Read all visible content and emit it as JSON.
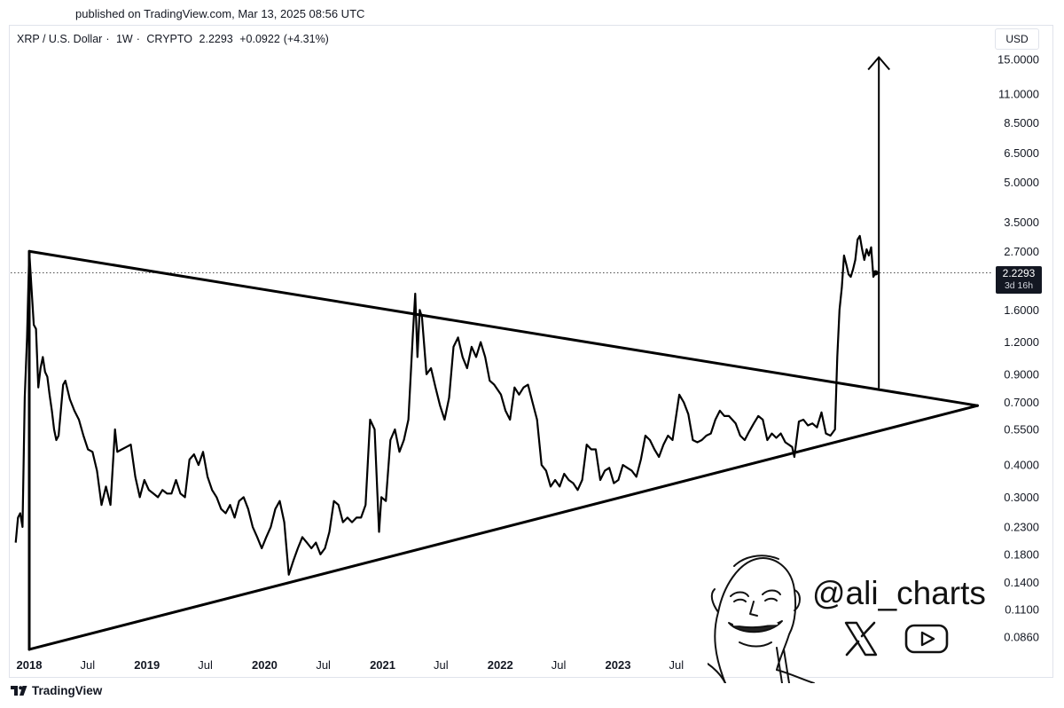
{
  "header": {
    "published": "published on TradingView.com, Mar 13, 2025 08:56 UTC"
  },
  "symbol": {
    "name": "XRP / U.S. Dollar",
    "interval": "1W",
    "source": "CRYPTO",
    "price": "2.2293",
    "change": "+0.0922",
    "change_pct": "(+4.31%)"
  },
  "currency": "USD",
  "price_tag": {
    "price": "2.2293",
    "countdown": "3d 16h"
  },
  "watermark": {
    "handle": "@ali_charts",
    "icons": [
      "x-logo-icon",
      "youtube-icon"
    ]
  },
  "footer": {
    "brand": "TradingView",
    "icon": "tradingview-logo-icon"
  },
  "colors": {
    "line": "#000000",
    "tag_bg": "#131722",
    "text": "#131722"
  },
  "chart_data": {
    "type": "line",
    "scale": "log",
    "ylim": [
      0.075,
      18
    ],
    "yticks": [
      "15.0000",
      "11.0000",
      "8.5000",
      "6.5000",
      "5.0000",
      "3.5000",
      "2.7000",
      "1.6000",
      "1.2000",
      "0.9000",
      "0.7000",
      "0.5500",
      "0.4000",
      "0.3000",
      "0.2300",
      "0.1800",
      "0.1400",
      "0.1100",
      "0.0860"
    ],
    "xticks": [
      "2018",
      "Jul",
      "2019",
      "Jul",
      "2020",
      "Jul",
      "2021",
      "Jul",
      "2022",
      "Jul",
      "2023",
      "Jul"
    ],
    "xlim": [
      "2017-11-20",
      "2026-01-20"
    ],
    "current_price": 2.2293,
    "series": [
      {
        "points": [
          [
            "2017-11-20",
            0.2
          ],
          [
            "2017-11-27",
            0.25
          ],
          [
            "2017-12-04",
            0.26
          ],
          [
            "2017-12-11",
            0.23
          ],
          [
            "2017-12-18",
            0.73
          ],
          [
            "2017-12-25",
            1.25
          ],
          [
            "2018-01-01",
            2.7
          ],
          [
            "2018-01-08",
            1.95
          ],
          [
            "2018-01-15",
            1.4
          ],
          [
            "2018-01-22",
            1.35
          ],
          [
            "2018-01-29",
            0.8
          ],
          [
            "2018-02-05",
            0.95
          ],
          [
            "2018-02-12",
            1.05
          ],
          [
            "2018-02-19",
            0.92
          ],
          [
            "2018-02-26",
            0.88
          ],
          [
            "2018-03-05",
            0.75
          ],
          [
            "2018-03-12",
            0.65
          ],
          [
            "2018-03-19",
            0.55
          ],
          [
            "2018-03-26",
            0.5
          ],
          [
            "2018-04-02",
            0.52
          ],
          [
            "2018-04-09",
            0.65
          ],
          [
            "2018-04-16",
            0.82
          ],
          [
            "2018-04-23",
            0.85
          ],
          [
            "2018-05-07",
            0.72
          ],
          [
            "2018-05-21",
            0.65
          ],
          [
            "2018-06-04",
            0.6
          ],
          [
            "2018-06-18",
            0.52
          ],
          [
            "2018-07-02",
            0.46
          ],
          [
            "2018-07-16",
            0.45
          ],
          [
            "2018-07-30",
            0.38
          ],
          [
            "2018-08-13",
            0.28
          ],
          [
            "2018-08-27",
            0.33
          ],
          [
            "2018-09-10",
            0.28
          ],
          [
            "2018-09-24",
            0.55
          ],
          [
            "2018-10-01",
            0.45
          ],
          [
            "2018-10-15",
            0.46
          ],
          [
            "2018-10-29",
            0.47
          ],
          [
            "2018-11-12",
            0.48
          ],
          [
            "2018-11-26",
            0.36
          ],
          [
            "2018-12-10",
            0.3
          ],
          [
            "2018-12-24",
            0.35
          ],
          [
            "2019-01-07",
            0.32
          ],
          [
            "2019-01-21",
            0.31
          ],
          [
            "2019-02-04",
            0.3
          ],
          [
            "2019-02-18",
            0.32
          ],
          [
            "2019-03-04",
            0.31
          ],
          [
            "2019-03-18",
            0.31
          ],
          [
            "2019-04-01",
            0.35
          ],
          [
            "2019-04-15",
            0.31
          ],
          [
            "2019-04-29",
            0.3
          ],
          [
            "2019-05-13",
            0.42
          ],
          [
            "2019-05-27",
            0.44
          ],
          [
            "2019-06-10",
            0.4
          ],
          [
            "2019-06-24",
            0.45
          ],
          [
            "2019-07-08",
            0.36
          ],
          [
            "2019-07-22",
            0.32
          ],
          [
            "2019-08-05",
            0.3
          ],
          [
            "2019-08-19",
            0.27
          ],
          [
            "2019-09-02",
            0.26
          ],
          [
            "2019-09-16",
            0.28
          ],
          [
            "2019-09-30",
            0.25
          ],
          [
            "2019-10-14",
            0.29
          ],
          [
            "2019-10-28",
            0.3
          ],
          [
            "2019-11-11",
            0.27
          ],
          [
            "2019-11-25",
            0.23
          ],
          [
            "2019-12-09",
            0.21
          ],
          [
            "2019-12-23",
            0.19
          ],
          [
            "2020-01-06",
            0.21
          ],
          [
            "2020-01-20",
            0.23
          ],
          [
            "2020-02-03",
            0.27
          ],
          [
            "2020-02-17",
            0.29
          ],
          [
            "2020-03-02",
            0.24
          ],
          [
            "2020-03-16",
            0.15
          ],
          [
            "2020-03-30",
            0.17
          ],
          [
            "2020-04-13",
            0.19
          ],
          [
            "2020-04-27",
            0.21
          ],
          [
            "2020-05-11",
            0.2
          ],
          [
            "2020-05-25",
            0.19
          ],
          [
            "2020-06-08",
            0.2
          ],
          [
            "2020-06-22",
            0.18
          ],
          [
            "2020-07-06",
            0.19
          ],
          [
            "2020-07-20",
            0.22
          ],
          [
            "2020-08-03",
            0.29
          ],
          [
            "2020-08-17",
            0.28
          ],
          [
            "2020-08-31",
            0.24
          ],
          [
            "2020-09-14",
            0.25
          ],
          [
            "2020-09-28",
            0.24
          ],
          [
            "2020-10-12",
            0.25
          ],
          [
            "2020-10-26",
            0.25
          ],
          [
            "2020-11-09",
            0.28
          ],
          [
            "2020-11-23",
            0.6
          ],
          [
            "2020-12-07",
            0.55
          ],
          [
            "2020-12-21",
            0.22
          ],
          [
            "2020-12-28",
            0.3
          ],
          [
            "2021-01-11",
            0.29
          ],
          [
            "2021-01-25",
            0.5
          ],
          [
            "2021-02-08",
            0.55
          ],
          [
            "2021-02-22",
            0.45
          ],
          [
            "2021-03-08",
            0.5
          ],
          [
            "2021-03-22",
            0.6
          ],
          [
            "2021-04-05",
            1.3
          ],
          [
            "2021-04-12",
            1.85
          ],
          [
            "2021-04-19",
            1.05
          ],
          [
            "2021-04-26",
            1.6
          ],
          [
            "2021-05-03",
            1.5
          ],
          [
            "2021-05-17",
            0.9
          ],
          [
            "2021-05-31",
            0.95
          ],
          [
            "2021-06-14",
            0.8
          ],
          [
            "2021-06-28",
            0.68
          ],
          [
            "2021-07-12",
            0.6
          ],
          [
            "2021-07-26",
            0.73
          ],
          [
            "2021-08-09",
            1.15
          ],
          [
            "2021-08-23",
            1.25
          ],
          [
            "2021-09-06",
            1.05
          ],
          [
            "2021-09-20",
            0.95
          ],
          [
            "2021-10-04",
            1.15
          ],
          [
            "2021-10-18",
            1.05
          ],
          [
            "2021-11-01",
            1.2
          ],
          [
            "2021-11-15",
            1.05
          ],
          [
            "2021-11-29",
            0.85
          ],
          [
            "2021-12-13",
            0.82
          ],
          [
            "2022-01-03",
            0.75
          ],
          [
            "2022-01-17",
            0.65
          ],
          [
            "2022-01-31",
            0.6
          ],
          [
            "2022-02-14",
            0.8
          ],
          [
            "2022-02-28",
            0.75
          ],
          [
            "2022-03-14",
            0.8
          ],
          [
            "2022-03-28",
            0.82
          ],
          [
            "2022-04-11",
            0.7
          ],
          [
            "2022-04-25",
            0.6
          ],
          [
            "2022-05-09",
            0.4
          ],
          [
            "2022-05-23",
            0.38
          ],
          [
            "2022-06-06",
            0.33
          ],
          [
            "2022-06-20",
            0.35
          ],
          [
            "2022-07-04",
            0.33
          ],
          [
            "2022-07-18",
            0.37
          ],
          [
            "2022-08-01",
            0.35
          ],
          [
            "2022-08-15",
            0.34
          ],
          [
            "2022-08-29",
            0.32
          ],
          [
            "2022-09-12",
            0.35
          ],
          [
            "2022-09-26",
            0.48
          ],
          [
            "2022-10-10",
            0.46
          ],
          [
            "2022-10-24",
            0.46
          ],
          [
            "2022-11-07",
            0.35
          ],
          [
            "2022-11-21",
            0.38
          ],
          [
            "2022-12-05",
            0.39
          ],
          [
            "2022-12-19",
            0.34
          ],
          [
            "2023-01-02",
            0.35
          ],
          [
            "2023-01-16",
            0.4
          ],
          [
            "2023-01-30",
            0.39
          ],
          [
            "2023-02-13",
            0.38
          ],
          [
            "2023-02-27",
            0.36
          ],
          [
            "2023-03-13",
            0.42
          ],
          [
            "2023-03-27",
            0.52
          ],
          [
            "2023-04-10",
            0.5
          ],
          [
            "2023-04-24",
            0.46
          ],
          [
            "2023-05-08",
            0.43
          ],
          [
            "2023-05-22",
            0.48
          ],
          [
            "2023-06-05",
            0.52
          ],
          [
            "2023-06-19",
            0.5
          ],
          [
            "2023-07-10",
            0.75
          ],
          [
            "2023-07-24",
            0.7
          ],
          [
            "2023-08-07",
            0.63
          ],
          [
            "2023-08-21",
            0.5
          ],
          [
            "2023-09-04",
            0.49
          ],
          [
            "2023-09-18",
            0.5
          ],
          [
            "2023-10-02",
            0.52
          ],
          [
            "2023-10-16",
            0.53
          ],
          [
            "2023-10-30",
            0.6
          ],
          [
            "2023-11-13",
            0.65
          ],
          [
            "2023-11-27",
            0.62
          ],
          [
            "2023-12-11",
            0.62
          ],
          [
            "2024-01-01",
            0.58
          ],
          [
            "2024-01-15",
            0.52
          ],
          [
            "2024-01-29",
            0.5
          ],
          [
            "2024-02-12",
            0.54
          ],
          [
            "2024-02-26",
            0.58
          ],
          [
            "2024-03-11",
            0.62
          ],
          [
            "2024-03-25",
            0.6
          ],
          [
            "2024-04-08",
            0.5
          ],
          [
            "2024-04-22",
            0.53
          ],
          [
            "2024-05-06",
            0.51
          ],
          [
            "2024-05-20",
            0.53
          ],
          [
            "2024-06-03",
            0.49
          ],
          [
            "2024-06-24",
            0.47
          ],
          [
            "2024-07-01",
            0.43
          ],
          [
            "2024-07-15",
            0.59
          ],
          [
            "2024-07-29",
            0.6
          ],
          [
            "2024-08-12",
            0.57
          ],
          [
            "2024-08-26",
            0.58
          ],
          [
            "2024-09-09",
            0.56
          ],
          [
            "2024-09-23",
            0.64
          ],
          [
            "2024-10-07",
            0.53
          ],
          [
            "2024-10-21",
            0.52
          ],
          [
            "2024-11-04",
            0.55
          ],
          [
            "2024-11-11",
            1.05
          ],
          [
            "2024-11-18",
            1.6
          ],
          [
            "2024-11-25",
            1.95
          ],
          [
            "2024-12-02",
            2.6
          ],
          [
            "2024-12-09",
            2.4
          ],
          [
            "2024-12-16",
            2.2
          ],
          [
            "2024-12-23",
            2.15
          ],
          [
            "2024-12-30",
            2.3
          ],
          [
            "2025-01-06",
            2.5
          ],
          [
            "2025-01-13",
            3.0
          ],
          [
            "2025-01-20",
            3.1
          ],
          [
            "2025-01-27",
            2.75
          ],
          [
            "2025-02-03",
            2.5
          ],
          [
            "2025-02-10",
            2.75
          ],
          [
            "2025-02-17",
            2.6
          ],
          [
            "2025-02-24",
            2.8
          ],
          [
            "2025-03-03",
            2.15
          ],
          [
            "2025-03-10",
            2.2293
          ]
        ]
      }
    ],
    "annotations": [
      {
        "type": "trendline",
        "from": [
          "2018-01-01",
          2.7
        ],
        "to": [
          "2026-01-20",
          0.68
        ]
      },
      {
        "type": "trendline",
        "from": [
          "2018-01-01",
          0.077
        ],
        "to": [
          "2026-01-20",
          0.68
        ]
      },
      {
        "type": "trendline",
        "from": [
          "2018-01-01",
          0.077
        ],
        "to": [
          "2018-01-01",
          2.7
        ]
      },
      {
        "type": "arrow",
        "from": [
          "2025-03-20",
          0.8
        ],
        "to": [
          "2025-03-20",
          15.3
        ]
      }
    ]
  }
}
